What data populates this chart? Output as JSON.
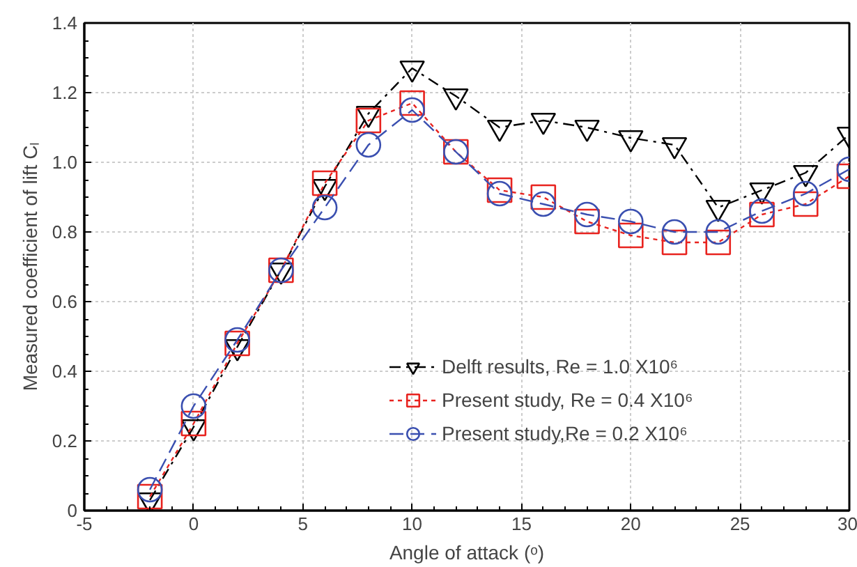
{
  "chart_data": {
    "type": "line",
    "xlabel": "Angle of attack (ᵒ)",
    "ylabel": "Measured coefficient of lift Cₗ",
    "x": [
      -2,
      0,
      2,
      4,
      6,
      8,
      10,
      12,
      14,
      16,
      18,
      20,
      22,
      24,
      26,
      28,
      30
    ],
    "series": [
      {
        "name": "Delft results, Re = 1.0 X10⁶",
        "color": "#000000",
        "marker": "triangle",
        "line_style": "dashdot",
        "values": [
          0.03,
          0.24,
          0.47,
          0.69,
          0.93,
          1.14,
          1.27,
          1.19,
          1.1,
          1.12,
          1.1,
          1.07,
          1.05,
          0.87,
          0.92,
          0.97,
          1.08
        ]
      },
      {
        "name": "Present study, Re = 0.4 X10⁶",
        "color": "#e8231f",
        "marker": "square",
        "line_style": "dotted",
        "values": [
          0.04,
          0.25,
          0.48,
          0.69,
          0.94,
          1.12,
          1.17,
          1.03,
          0.92,
          0.9,
          0.83,
          0.79,
          0.77,
          0.77,
          0.85,
          0.88,
          0.96
        ]
      },
      {
        "name": "Present study,Re = 0.2 X10⁶",
        "color": "#3a4fb0",
        "marker": "circle",
        "line_style": "dashed",
        "values": [
          0.06,
          0.3,
          0.49,
          0.69,
          0.87,
          1.05,
          1.15,
          1.03,
          0.91,
          0.88,
          0.85,
          0.83,
          0.8,
          0.8,
          0.86,
          0.91,
          0.98
        ]
      }
    ],
    "xlim": [
      -5,
      30
    ],
    "xticks": [
      -5,
      0,
      5,
      10,
      15,
      20,
      25,
      30
    ],
    "ylim": [
      0,
      1.4
    ],
    "yticks": [
      0,
      0.2,
      0.4,
      0.6,
      0.8,
      {
        "value": 1.0,
        "label": "1.0"
      },
      1.2,
      1.4
    ],
    "grid": true,
    "legend": "right"
  }
}
